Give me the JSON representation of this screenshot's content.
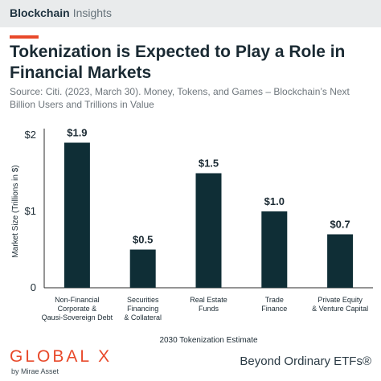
{
  "header": {
    "brand": "Blockchain",
    "section": "Insights"
  },
  "title": "Tokenization is Expected to Play a Role in Financial Markets",
  "source": "Source: Citi. (2023, March 30). Money, Tokens, and Games – Blockchain’s Next Billion Users and Trillions in Value",
  "chart_data": {
    "type": "bar",
    "categories": [
      [
        "Non-Financial",
        "Corporate &",
        "Qausi-Sovereign Debt"
      ],
      [
        "Securities",
        "Financing",
        "& Collateral"
      ],
      [
        "Real Estate",
        "Funds"
      ],
      [
        "Trade",
        "Finance"
      ],
      [
        "Private Equity",
        "& Venture Capital"
      ]
    ],
    "values": [
      1.9,
      0.5,
      1.5,
      1.0,
      0.7
    ],
    "data_labels": [
      "$1.9",
      "$0.5",
      "$1.5",
      "$1.0",
      "$0.7"
    ],
    "xlabel": "2030 Tokenization Estimate",
    "ylabel": "Market Size (Trillions in $)",
    "ylim": [
      0,
      2
    ],
    "yticks": [
      0,
      1,
      2
    ],
    "ytick_labels": [
      "0",
      "$1",
      "$2"
    ],
    "bar_color": "#0f2e36",
    "grid": false
  },
  "footer": {
    "logo": "GLOBAL X",
    "logo_sub": "by Mirae Asset",
    "tagline": "Beyond Ordinary ETFs®"
  },
  "colors": {
    "accent": "#e8492a",
    "bar": "#0f2e36",
    "header_bg": "#e9ebec"
  }
}
